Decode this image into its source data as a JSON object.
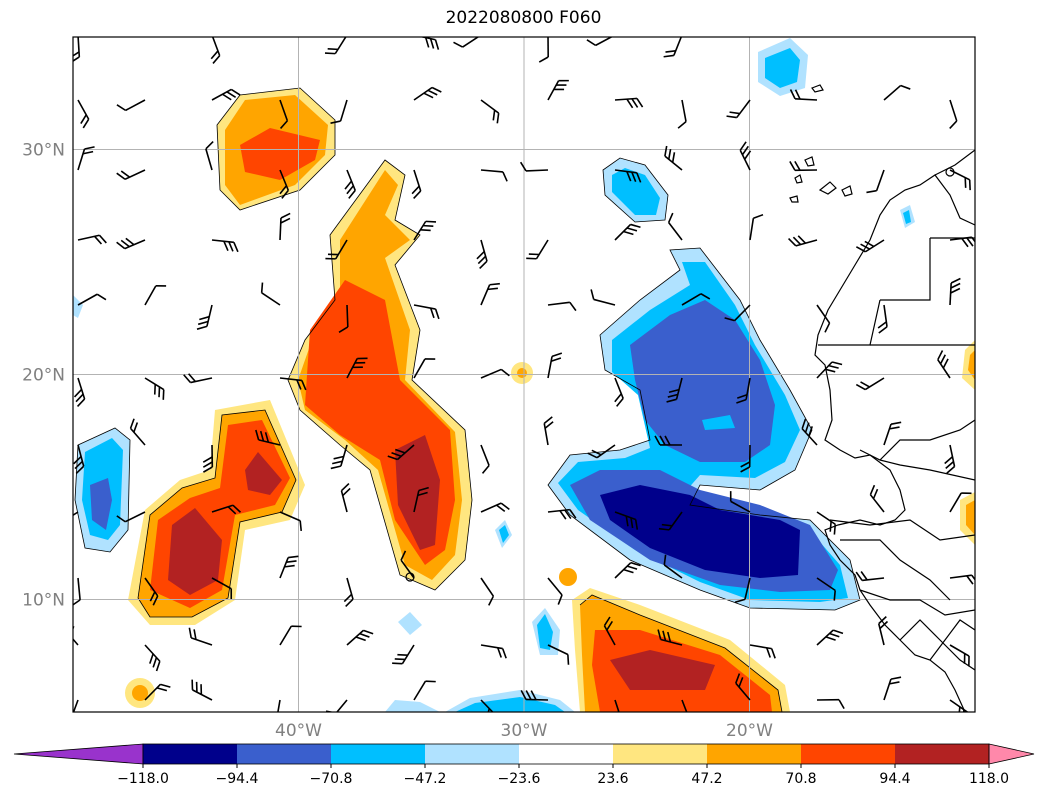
{
  "title": "2022080800 F060",
  "map": {
    "lat_labels": [
      {
        "label": "30°N",
        "lat": 30
      },
      {
        "label": "20°N",
        "lat": 20
      },
      {
        "label": "10°N",
        "lat": 10
      }
    ],
    "lon_labels": [
      {
        "label": "40°W",
        "lon": -40
      },
      {
        "label": "30°W",
        "lon": -30
      },
      {
        "label": "20°W",
        "lon": -20
      }
    ],
    "extent": {
      "lon": [
        -50,
        -10
      ],
      "lat": [
        5,
        35
      ]
    },
    "gridlines": true
  },
  "colorbar": {
    "levels": [
      "−118.0",
      "−94.4",
      "−70.8",
      "−47.2",
      "−23.6",
      "23.6",
      "47.2",
      "70.8",
      "94.4",
      "118.0"
    ],
    "colors": [
      "#9933cc",
      "#00008b",
      "#3a5fcd",
      "#00bfff",
      "#b0e2ff",
      "#ffffff",
      "#ffe680",
      "#ffa500",
      "#ff4500",
      "#b22222",
      "#ff88aa"
    ],
    "extend": "both"
  }
}
